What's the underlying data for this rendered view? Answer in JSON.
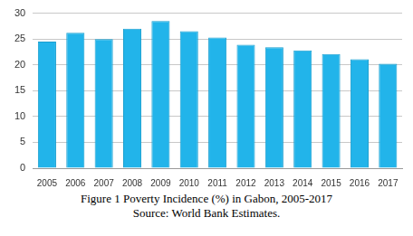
{
  "chart_data": {
    "type": "bar",
    "title": "Figure 1 Poverty Incidence (%) in Gabon, 2005-2017",
    "subtitle": "Source: World Bank Estimates.",
    "categories": [
      "2005",
      "2006",
      "2007",
      "2008",
      "2009",
      "2010",
      "2011",
      "2012",
      "2013",
      "2014",
      "2015",
      "2016",
      "2017"
    ],
    "values": [
      24.5,
      26.2,
      25.0,
      27.0,
      28.5,
      26.5,
      25.3,
      23.9,
      23.4,
      22.8,
      22.1,
      21.1,
      20.2
    ],
    "color": "#22b4ea",
    "ylim": [
      0,
      30
    ],
    "yticks": [
      0,
      5,
      10,
      15,
      20,
      25,
      30
    ],
    "grid": true
  }
}
